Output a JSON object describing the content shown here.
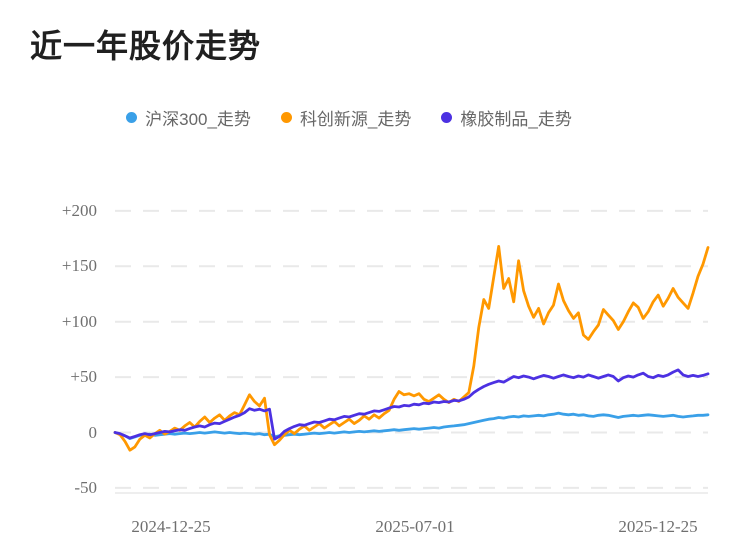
{
  "chart_data": {
    "type": "line",
    "title": "近一年股价走势",
    "legend_position": "top",
    "grid": "horizontal dashed gridlines on, vertical off",
    "x_axis": {
      "tick_labels": [
        "2024-12-25",
        "2025-07-01",
        "2025-12-25"
      ],
      "range": [
        "2024-12-25",
        "2025-12-25"
      ]
    },
    "y_axis": {
      "tick_labels": [
        "+200",
        "+150",
        "+100",
        "+50",
        "0",
        "-50"
      ],
      "tick_values": [
        200,
        150,
        100,
        50,
        0,
        -50
      ],
      "ylim": [
        -75,
        235
      ],
      "unit": "percent change"
    },
    "series": [
      {
        "name": "沪深300_走势",
        "color": "#3aa0e8",
        "values": [
          0,
          -1.5,
          -3,
          -5.5,
          -4,
          -2.5,
          -2,
          -1.5,
          -2.5,
          -2,
          -1.5,
          -1,
          -1.5,
          -1,
          -0.5,
          -1,
          -0.5,
          0,
          -0.5,
          0,
          0.5,
          0,
          -0.5,
          0,
          -0.5,
          -1,
          -0.5,
          -1,
          -1.5,
          -1,
          -2,
          -1.5,
          -4,
          -3,
          -2.5,
          -2,
          -1.5,
          -2,
          -1.5,
          -1,
          -0.5,
          -1,
          -0.5,
          0,
          -0.5,
          0,
          0.5,
          0,
          0.5,
          1,
          0.5,
          1,
          1.5,
          1,
          1.5,
          2,
          2.5,
          2,
          2.5,
          3,
          3.5,
          3,
          3.5,
          4,
          4.5,
          4,
          5,
          5.5,
          6,
          6.5,
          7,
          8,
          9,
          10,
          11,
          12,
          12.5,
          13.5,
          13,
          14,
          14.5,
          14,
          15,
          14.5,
          15,
          15.5,
          15,
          16,
          16.5,
          17.5,
          16.5,
          16,
          16.5,
          15.5,
          16,
          15,
          14.5,
          15.5,
          16,
          15.5,
          14.5,
          13.5,
          14.5,
          15,
          15.5,
          15,
          15.5,
          16,
          15.5,
          15,
          14.5,
          15,
          15.5,
          14.5,
          14,
          14.5,
          15,
          15.5,
          15.5,
          16
        ]
      },
      {
        "name": "科创新源_走势",
        "color": "#ff9800",
        "values": [
          0,
          -2,
          -8,
          -16,
          -13,
          -6,
          -2.5,
          -5,
          -1,
          2,
          -1.5,
          1,
          4,
          2,
          6,
          9,
          5,
          10,
          14,
          9,
          13,
          16,
          11,
          15,
          18,
          16,
          25,
          34,
          28,
          24,
          31,
          -2,
          -11,
          -7,
          -2,
          2,
          -1,
          3,
          6,
          2,
          5,
          8,
          4,
          7,
          10,
          6,
          9,
          12,
          8,
          11,
          15,
          12,
          16,
          13,
          17,
          20,
          30,
          37,
          34,
          35,
          33,
          35,
          30,
          28,
          31,
          34,
          30,
          27,
          30,
          28,
          32,
          36,
          60,
          95,
          120,
          112,
          140,
          168,
          130,
          139,
          118,
          155,
          128,
          114,
          104,
          112,
          98,
          108,
          115,
          134,
          119,
          110,
          103,
          108,
          88,
          84,
          91,
          97,
          111,
          106,
          101,
          93,
          100,
          109,
          117,
          113,
          103,
          109,
          118,
          124,
          114,
          121,
          130,
          122,
          117,
          112,
          126,
          141,
          152,
          167
        ]
      },
      {
        "name": "橡胶制品_走势",
        "color": "#4c31e2",
        "values": [
          0,
          -1,
          -3,
          -5,
          -3.5,
          -2,
          -1,
          -2,
          -1,
          0,
          1,
          0.5,
          1.5,
          2.5,
          2,
          3.5,
          5,
          6,
          5,
          7,
          8.5,
          8,
          10,
          12,
          14,
          15.5,
          18,
          21.5,
          20,
          21,
          19.5,
          21,
          -6,
          -3.5,
          1,
          3.5,
          5.5,
          7,
          6.5,
          8,
          9.5,
          9,
          10.5,
          12,
          11.5,
          13,
          14.5,
          14,
          15.5,
          17,
          16.5,
          18,
          19.5,
          19,
          20.5,
          22,
          23.5,
          23,
          24.5,
          24,
          25.5,
          25,
          26.5,
          26,
          27.5,
          27,
          28,
          27.5,
          29,
          28.5,
          30,
          32,
          36,
          39,
          41.5,
          43.5,
          45,
          46.5,
          45.5,
          48,
          50.5,
          49.5,
          51,
          50,
          48.5,
          50,
          51.5,
          50.5,
          49,
          50.5,
          52,
          50.5,
          49.5,
          51,
          50,
          52,
          50.5,
          49,
          50.5,
          52,
          50.5,
          46.5,
          49.5,
          51,
          50,
          52,
          53.5,
          50.5,
          49.5,
          51.5,
          50.5,
          52,
          54.5,
          56.5,
          52,
          50.5,
          51.5,
          50.5,
          51.5,
          53
        ]
      }
    ]
  }
}
